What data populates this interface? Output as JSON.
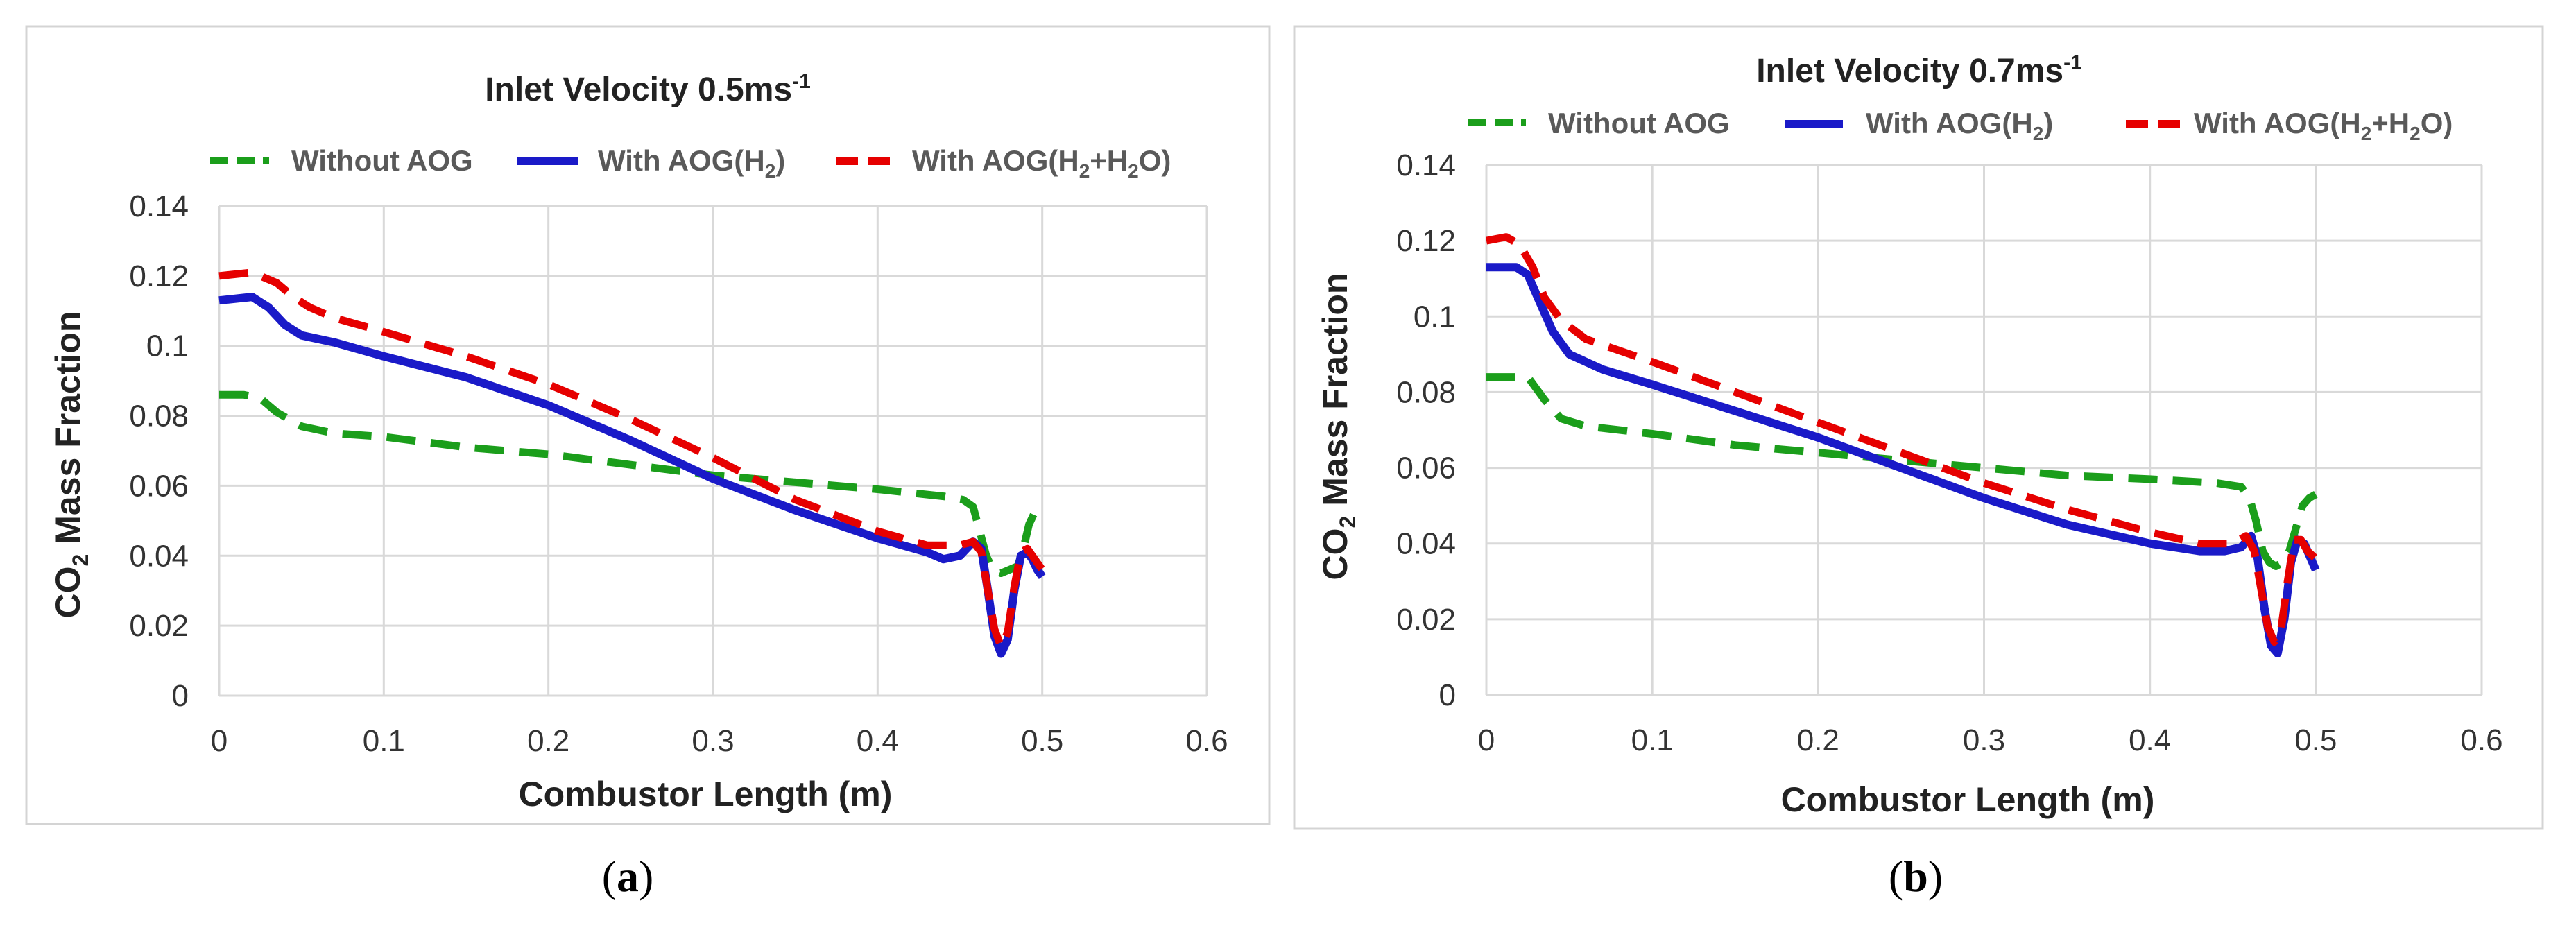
{
  "chart_data": [
    {
      "type": "line",
      "title": "Inlet Velocity 0.5ms",
      "title_sup": "-1",
      "xlabel": "Combustor Length (m)",
      "ylabel_prefix": "CO",
      "ylabel_sub": "2",
      "ylabel_suffix": " Mass Fraction",
      "xlim": [
        0,
        0.6
      ],
      "ylim": [
        0,
        0.14
      ],
      "xticks": [
        0,
        0.1,
        0.2,
        0.3,
        0.4,
        0.5,
        0.6
      ],
      "xtick_labels": [
        "0",
        "0.1",
        "0.2",
        "0.3",
        "0.4",
        "0.5",
        "0.6"
      ],
      "yticks": [
        0,
        0.02,
        0.04,
        0.06,
        0.08,
        0.1,
        0.12,
        0.14
      ],
      "ytick_labels": [
        "0",
        "0.02",
        "0.04",
        "0.06",
        "0.08",
        "0.1",
        "0.12",
        "0.14"
      ],
      "caption_letter": "a",
      "legend": {
        "without_aog": "Without AOG",
        "with_h2_prefix": "With AOG(H",
        "with_h2_sub": "2",
        "with_h2_suffix": ")",
        "with_h2h2o_prefix": "With AOG(H",
        "with_h2h2o_sub1": "2",
        "with_h2h2o_mid": "+H",
        "with_h2h2o_sub2": "2",
        "with_h2h2o_suffix": "O)"
      },
      "series": [
        {
          "name": "Without AOG",
          "color": "#1b9e1b",
          "style": "dashed",
          "x": [
            0,
            0.015,
            0.025,
            0.035,
            0.05,
            0.07,
            0.1,
            0.15,
            0.2,
            0.25,
            0.3,
            0.35,
            0.4,
            0.44,
            0.452,
            0.458,
            0.462,
            0.466,
            0.47,
            0.475,
            0.48,
            0.485,
            0.488,
            0.492,
            0.496,
            0.5
          ],
          "y": [
            0.086,
            0.086,
            0.085,
            0.081,
            0.077,
            0.075,
            0.074,
            0.071,
            0.069,
            0.066,
            0.063,
            0.061,
            0.059,
            0.057,
            0.056,
            0.054,
            0.047,
            0.04,
            0.036,
            0.035,
            0.036,
            0.037,
            0.041,
            0.049,
            0.053,
            0.054
          ]
        },
        {
          "name": "With AOG(H2)",
          "color": "#1a1ac8",
          "style": "solid",
          "x": [
            0,
            0.02,
            0.03,
            0.04,
            0.05,
            0.07,
            0.1,
            0.15,
            0.2,
            0.25,
            0.3,
            0.35,
            0.4,
            0.43,
            0.44,
            0.45,
            0.458,
            0.463,
            0.467,
            0.471,
            0.475,
            0.479,
            0.483,
            0.487,
            0.491,
            0.494,
            0.497,
            0.5
          ],
          "y": [
            0.113,
            0.114,
            0.111,
            0.106,
            0.103,
            0.101,
            0.097,
            0.091,
            0.083,
            0.073,
            0.062,
            0.053,
            0.045,
            0.041,
            0.039,
            0.04,
            0.044,
            0.042,
            0.03,
            0.017,
            0.012,
            0.016,
            0.03,
            0.04,
            0.041,
            0.039,
            0.036,
            0.034
          ]
        },
        {
          "name": "With AOG(H2+H2O)",
          "color": "#e60000",
          "style": "dashed",
          "x": [
            0,
            0.02,
            0.035,
            0.045,
            0.055,
            0.07,
            0.1,
            0.15,
            0.2,
            0.25,
            0.3,
            0.35,
            0.4,
            0.43,
            0.45,
            0.458,
            0.463,
            0.467,
            0.471,
            0.475,
            0.479,
            0.483,
            0.487,
            0.491,
            0.494,
            0.497,
            0.5
          ],
          "y": [
            0.12,
            0.121,
            0.118,
            0.114,
            0.111,
            0.108,
            0.104,
            0.097,
            0.089,
            0.079,
            0.068,
            0.056,
            0.047,
            0.043,
            0.043,
            0.044,
            0.041,
            0.03,
            0.019,
            0.014,
            0.018,
            0.031,
            0.041,
            0.042,
            0.04,
            0.038,
            0.036
          ]
        }
      ]
    },
    {
      "type": "line",
      "title": "Inlet Velocity 0.7ms",
      "title_sup": "-1",
      "xlabel": "Combustor Length (m)",
      "ylabel_prefix": "CO",
      "ylabel_sub": "2",
      "ylabel_suffix": " Mass Fraction",
      "xlim": [
        0,
        0.6
      ],
      "ylim": [
        0,
        0.14
      ],
      "xticks": [
        0,
        0.1,
        0.2,
        0.3,
        0.4,
        0.5,
        0.6
      ],
      "xtick_labels": [
        "0",
        "0.1",
        "0.2",
        "0.3",
        "0.4",
        "0.5",
        "0.6"
      ],
      "yticks": [
        0,
        0.02,
        0.04,
        0.06,
        0.08,
        0.1,
        0.12,
        0.14
      ],
      "ytick_labels": [
        "0",
        "0.02",
        "0.04",
        "0.06",
        "0.08",
        "0.1",
        "0.12",
        "0.14"
      ],
      "caption_letter": "b",
      "legend": {
        "without_aog": "Without AOG",
        "with_h2_prefix": "With AOG(H",
        "with_h2_sub": "2",
        "with_h2_suffix": ")",
        "with_h2h2o_prefix": "With AOG(H",
        "with_h2h2o_sub1": "2",
        "with_h2h2o_mid": "+H",
        "with_h2h2o_sub2": "2",
        "with_h2h2o_suffix": "O)"
      },
      "series": [
        {
          "name": "Without AOG",
          "color": "#1b9e1b",
          "style": "dashed",
          "x": [
            0,
            0.015,
            0.025,
            0.035,
            0.045,
            0.06,
            0.1,
            0.15,
            0.2,
            0.25,
            0.3,
            0.35,
            0.4,
            0.44,
            0.455,
            0.46,
            0.464,
            0.468,
            0.472,
            0.476,
            0.48,
            0.484,
            0.488,
            0.492,
            0.496,
            0.5
          ],
          "y": [
            0.084,
            0.084,
            0.084,
            0.078,
            0.073,
            0.071,
            0.069,
            0.066,
            0.064,
            0.062,
            0.06,
            0.058,
            0.057,
            0.056,
            0.055,
            0.052,
            0.046,
            0.038,
            0.035,
            0.034,
            0.035,
            0.038,
            0.044,
            0.05,
            0.052,
            0.053
          ]
        },
        {
          "name": "With AOG(H2)",
          "color": "#1a1ac8",
          "style": "solid",
          "x": [
            0,
            0.018,
            0.025,
            0.032,
            0.04,
            0.05,
            0.07,
            0.1,
            0.15,
            0.2,
            0.25,
            0.3,
            0.35,
            0.4,
            0.43,
            0.445,
            0.455,
            0.461,
            0.465,
            0.469,
            0.473,
            0.477,
            0.481,
            0.485,
            0.489,
            0.493,
            0.497,
            0.5
          ],
          "y": [
            0.113,
            0.113,
            0.111,
            0.104,
            0.096,
            0.09,
            0.086,
            0.082,
            0.075,
            0.068,
            0.06,
            0.052,
            0.045,
            0.04,
            0.038,
            0.038,
            0.039,
            0.042,
            0.036,
            0.023,
            0.013,
            0.011,
            0.02,
            0.035,
            0.041,
            0.04,
            0.036,
            0.033
          ]
        },
        {
          "name": "With AOG(H2+H2O)",
          "color": "#e60000",
          "style": "dashed",
          "x": [
            0,
            0.012,
            0.02,
            0.028,
            0.035,
            0.045,
            0.06,
            0.1,
            0.15,
            0.2,
            0.25,
            0.3,
            0.35,
            0.4,
            0.43,
            0.45,
            0.458,
            0.463,
            0.467,
            0.471,
            0.475,
            0.479,
            0.483,
            0.487,
            0.491,
            0.495,
            0.5
          ],
          "y": [
            0.12,
            0.121,
            0.119,
            0.113,
            0.105,
            0.099,
            0.094,
            0.088,
            0.08,
            0.072,
            0.064,
            0.056,
            0.049,
            0.043,
            0.04,
            0.04,
            0.042,
            0.038,
            0.028,
            0.018,
            0.014,
            0.017,
            0.03,
            0.041,
            0.041,
            0.038,
            0.036
          ]
        }
      ]
    }
  ]
}
